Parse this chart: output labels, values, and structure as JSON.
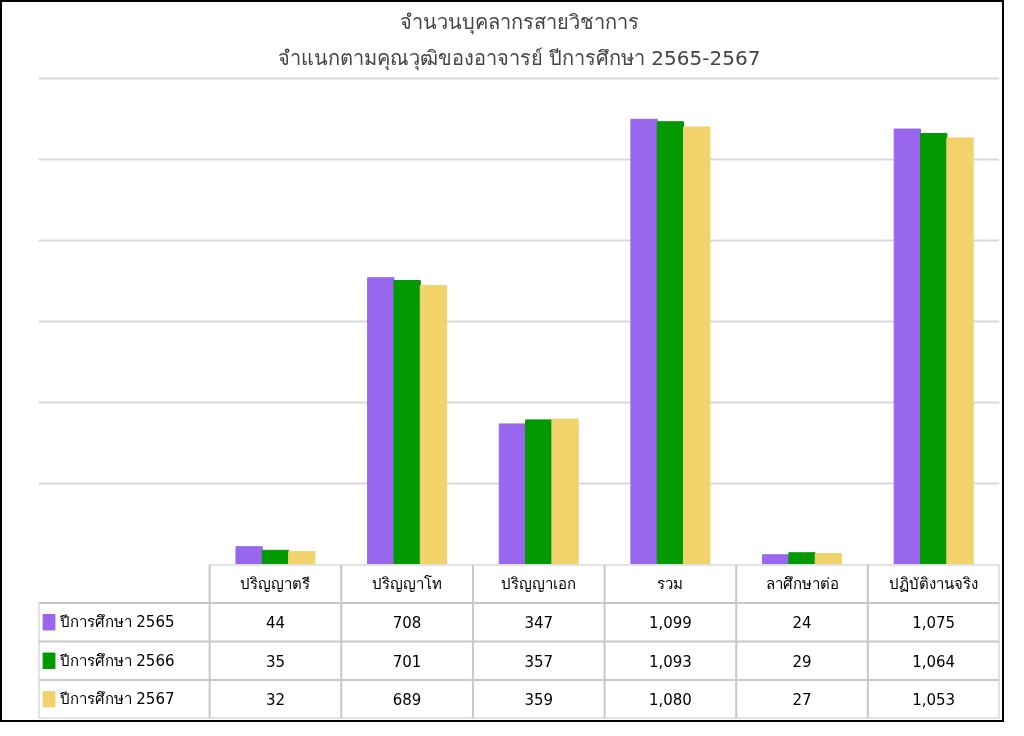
{
  "chart_data": {
    "type": "bar",
    "title": "จำนวนบุคลากรสายวิชาการ",
    "subtitle": "จำแนกตามคุณวุฒิของอาจารย์ ปีการศึกษา 2565-2567",
    "categories": [
      "ปริญญาตรี",
      "ปริญญาโท",
      "ปริญญาเอก",
      "รวม",
      "ลาศึกษาต่อ",
      "ปฏิบัติงานจริง"
    ],
    "series": [
      {
        "name": "ปีการศึกษา 2565",
        "color": "#9966ee",
        "values": [
          44,
          708,
          347,
          1099,
          24,
          1075
        ],
        "value_labels": [
          "44",
          "708",
          "347",
          "1,099",
          "24",
          "1,075"
        ]
      },
      {
        "name": "ปีการศึกษา 2566",
        "color": "#009900",
        "values": [
          35,
          701,
          357,
          1093,
          29,
          1064
        ],
        "value_labels": [
          "35",
          "701",
          "357",
          "1,093",
          "29",
          "1,064"
        ]
      },
      {
        "name": "ปีการศึกษา 2567",
        "color": "#f2d36b",
        "values": [
          32,
          689,
          359,
          1080,
          27,
          1053
        ],
        "value_labels": [
          "32",
          "689",
          "359",
          "1,080",
          "27",
          "1,053"
        ]
      }
    ],
    "yticks": [
      {
        "value": 0,
        "label": null
      },
      {
        "value": 200,
        "label": null
      },
      {
        "value": 400,
        "label": null
      },
      {
        "value": 600,
        "label": null
      },
      {
        "value": 800,
        "label": null
      },
      {
        "value": 1000,
        "label": null
      },
      {
        "value": 1200,
        "label": null
      }
    ],
    "grid": "y",
    "tick_labels": false,
    "legend": "bottom left"
  }
}
